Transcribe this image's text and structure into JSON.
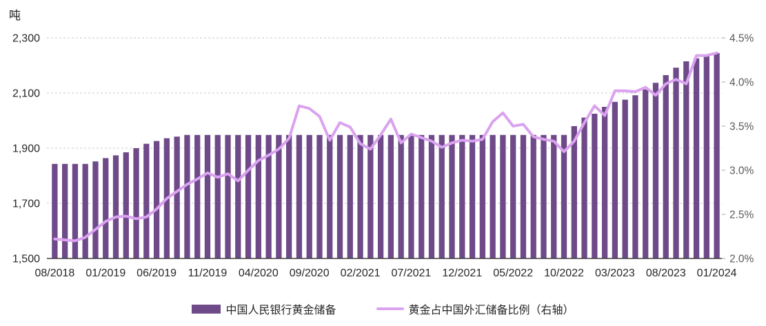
{
  "unit_label": "吨",
  "legend": {
    "bar_label": "中国人民银行黄金储备",
    "line_label": "黄金占中国外汇储备比例（右轴）"
  },
  "colors": {
    "bar": "#6e4a89",
    "line": "#daa2f0",
    "grid": "#c8c8c8",
    "axis": "#404040",
    "label_dark": "#262626",
    "label_gray": "#595959"
  },
  "chart_data": {
    "type": "bar+line combo, dual axis",
    "grid": "horizontal dashed gridlines at left-axis ticks",
    "legend_position": "bottom center",
    "months": [
      "08/2018",
      "09/2018",
      "10/2018",
      "11/2018",
      "12/2018",
      "01/2019",
      "02/2019",
      "03/2019",
      "04/2019",
      "05/2019",
      "06/2019",
      "07/2019",
      "08/2019",
      "09/2019",
      "10/2019",
      "11/2019",
      "12/2019",
      "01/2020",
      "02/2020",
      "03/2020",
      "04/2020",
      "05/2020",
      "06/2020",
      "07/2020",
      "08/2020",
      "09/2020",
      "10/2020",
      "11/2020",
      "12/2020",
      "01/2021",
      "02/2021",
      "03/2021",
      "04/2021",
      "05/2021",
      "06/2021",
      "07/2021",
      "08/2021",
      "09/2021",
      "10/2021",
      "11/2021",
      "12/2021",
      "01/2022",
      "02/2022",
      "03/2022",
      "04/2022",
      "05/2022",
      "06/2022",
      "07/2022",
      "08/2022",
      "09/2022",
      "10/2022",
      "11/2022",
      "12/2022",
      "01/2023",
      "02/2023",
      "03/2023",
      "04/2023",
      "05/2023",
      "06/2023",
      "07/2023",
      "08/2023",
      "09/2023",
      "10/2023",
      "11/2023",
      "12/2023",
      "01/2024"
    ],
    "series": [
      {
        "name": "中国人民银行黄金储备",
        "type": "bar",
        "axis": "left",
        "unit": "吨",
        "values": [
          1843,
          1843,
          1843,
          1843,
          1852,
          1864,
          1874,
          1885,
          1900,
          1916,
          1926,
          1936,
          1942,
          1948,
          1948,
          1948,
          1948,
          1948,
          1948,
          1948,
          1948,
          1948,
          1948,
          1948,
          1948,
          1948,
          1948,
          1948,
          1948,
          1948,
          1948,
          1948,
          1948,
          1948,
          1948,
          1948,
          1948,
          1948,
          1948,
          1948,
          1948,
          1948,
          1948,
          1948,
          1948,
          1948,
          1948,
          1948,
          1948,
          1948,
          1948,
          1980,
          2011,
          2025,
          2050,
          2068,
          2076,
          2092,
          2113,
          2137,
          2165,
          2192,
          2215,
          2226,
          2235,
          2245
        ]
      },
      {
        "name": "黄金占中国外汇储备比例（右轴）",
        "type": "line",
        "axis": "right",
        "unit": "%",
        "values": [
          2.22,
          2.21,
          2.2,
          2.24,
          2.33,
          2.42,
          2.47,
          2.48,
          2.45,
          2.47,
          2.56,
          2.68,
          2.76,
          2.84,
          2.9,
          2.97,
          2.92,
          2.96,
          2.88,
          3.0,
          3.11,
          3.17,
          3.24,
          3.36,
          3.73,
          3.7,
          3.61,
          3.34,
          3.54,
          3.49,
          3.3,
          3.24,
          3.4,
          3.58,
          3.31,
          3.41,
          3.37,
          3.33,
          3.26,
          3.31,
          3.34,
          3.33,
          3.35,
          3.55,
          3.65,
          3.5,
          3.52,
          3.38,
          3.35,
          3.33,
          3.21,
          3.33,
          3.54,
          3.73,
          3.62,
          3.9,
          3.9,
          3.89,
          3.94,
          3.85,
          3.98,
          4.03,
          3.98,
          4.3,
          4.3,
          4.33
        ]
      }
    ],
    "left_axis": {
      "unit": "吨",
      "min": 1500,
      "max": 2300,
      "tick_values": [
        1500,
        1700,
        1900,
        2100,
        2300
      ],
      "tick_labels": [
        "1,500",
        "1,700",
        "1,900",
        "2,100",
        "2,300"
      ]
    },
    "right_axis": {
      "min": 2.0,
      "max": 4.5,
      "tick_values": [
        2.0,
        2.5,
        3.0,
        3.5,
        4.0,
        4.5
      ],
      "tick_labels": [
        "2.0%",
        "2.5%",
        "3.0%",
        "3.5%",
        "4.0%",
        "4.5%"
      ]
    },
    "x_ticks": {
      "every": 5,
      "labels": [
        "08/2018",
        "01/2019",
        "06/2019",
        "11/2019",
        "04/2020",
        "09/2020",
        "02/2021",
        "07/2021",
        "12/2021",
        "05/2022",
        "10/2022",
        "03/2023",
        "08/2023",
        "01/2024"
      ]
    }
  }
}
